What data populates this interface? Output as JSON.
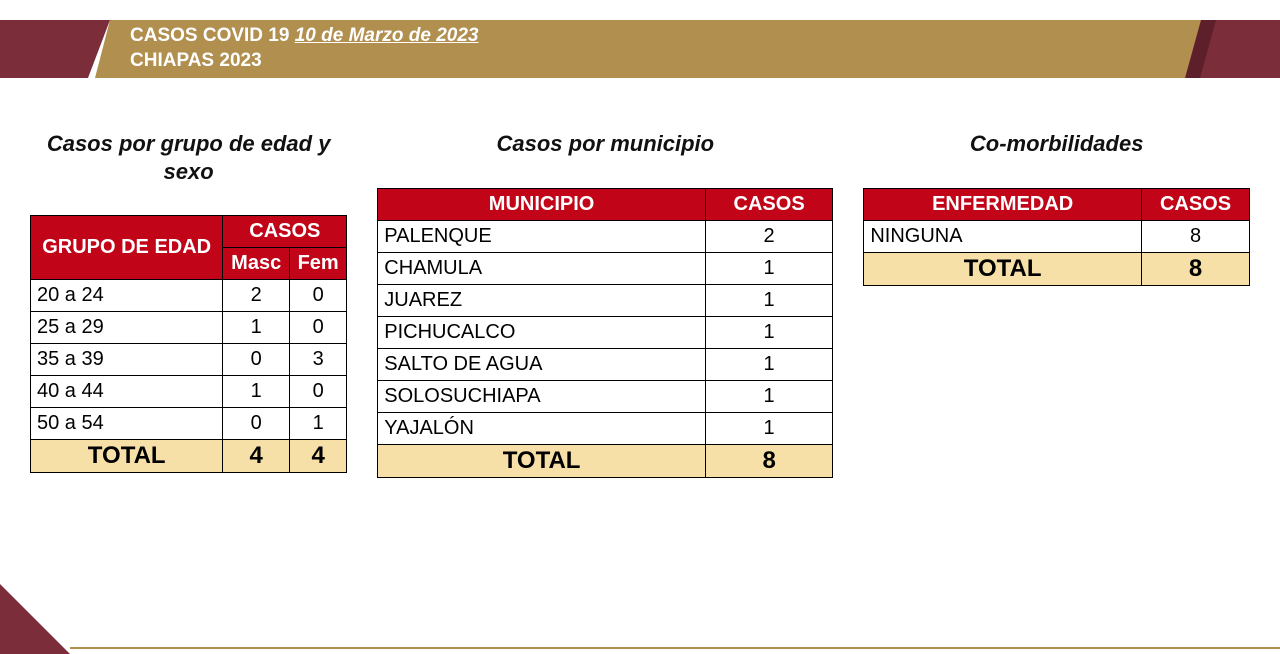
{
  "colors": {
    "maroon": "#7b2d3a",
    "maroon_dark": "#5d1f2a",
    "gold": "#b08f4f",
    "header_red": "#c10418",
    "total_row": "#f6e0a8",
    "white": "#ffffff",
    "black": "#000000"
  },
  "header": {
    "line1_prefix": "CASOS COVID 19 ",
    "line1_date": "10 de Marzo de 2023",
    "line2": "CHIAPAS 2023"
  },
  "table1": {
    "title": "Casos por grupo de edad y sexo",
    "h_grupo": "GRUPO DE EDAD",
    "h_casos": "CASOS",
    "h_masc": "Masc",
    "h_fem": "Fem",
    "rows": [
      {
        "grupo": "20 a 24",
        "masc": "2",
        "fem": "0"
      },
      {
        "grupo": "25 a 29",
        "masc": "1",
        "fem": "0"
      },
      {
        "grupo": "35 a 39",
        "masc": "0",
        "fem": "3"
      },
      {
        "grupo": "40 a 44",
        "masc": "1",
        "fem": "0"
      },
      {
        "grupo": "50 a 54",
        "masc": "0",
        "fem": "1"
      }
    ],
    "total_label": "TOTAL",
    "total_masc": "4",
    "total_fem": "4"
  },
  "table2": {
    "title": "Casos por municipio",
    "h_municipio": "MUNICIPIO",
    "h_casos": "CASOS",
    "rows": [
      {
        "m": "PALENQUE",
        "c": "2"
      },
      {
        "m": "CHAMULA",
        "c": "1"
      },
      {
        "m": "JUAREZ",
        "c": "1"
      },
      {
        "m": "PICHUCALCO",
        "c": "1"
      },
      {
        "m": "SALTO DE AGUA",
        "c": "1"
      },
      {
        "m": "SOLOSUCHIAPA",
        "c": "1"
      },
      {
        "m": "YAJALÓN",
        "c": "1"
      }
    ],
    "total_label": "TOTAL",
    "total_value": "8"
  },
  "table3": {
    "title": "Co-morbilidades",
    "h_enf": "ENFERMEDAD",
    "h_casos": "CASOS",
    "rows": [
      {
        "e": "NINGUNA",
        "c": "8"
      }
    ],
    "total_label": "TOTAL",
    "total_value": "8"
  }
}
